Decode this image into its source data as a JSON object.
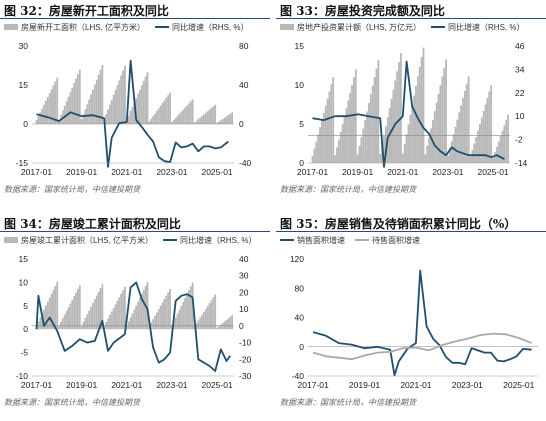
{
  "charts": [
    {
      "id": "c32",
      "title": "图 32：房屋新开工面积及同比",
      "source": "数据来源：国家统计局，中信建投期货",
      "chart_data": {
        "type": "bar+line",
        "legend": {
          "position": "top",
          "entries": [
            "房屋新开工面积（LHS, 亿平方米）",
            "同比增速（RHS, %）"
          ]
        },
        "left_axis": {
          "ticks": [
            -15,
            0,
            15,
            30
          ],
          "ylim": [
            -15,
            30
          ]
        },
        "right_axis": {
          "ticks": [
            -40,
            0,
            40,
            80
          ],
          "ylim": [
            -40,
            80
          ]
        },
        "xticks": [
          "2017-01",
          "2019-01",
          "2021-01",
          "2023-01",
          "2025-01"
        ],
        "series": [
          {
            "name": "房屋新开工面积（LHS, 亿平方米）",
            "axis": "left",
            "kind": "bar",
            "color": "#b8b8b8",
            "x": [
              "2017-01",
              "2018-01",
              "2019-01",
              "2020-01",
              "2021-01",
              "2022-01",
              "2023-01",
              "2024-01",
              "2025-01"
            ],
            "annual_totals": [
              17.8,
              20.9,
              22.7,
              22.4,
              19.9,
              12.1,
              9.5,
              7.4,
              5.9
            ],
            "note": "cumulative year-to-date"
          },
          {
            "name": "同比增速（RHS, %）",
            "axis": "right",
            "kind": "line",
            "color": "#1f4e6e",
            "x": [
              "2017-01",
              "2017-07",
              "2018-01",
              "2018-07",
              "2019-01",
              "2019-07",
              "2020-01",
              "2020-03",
              "2020-05",
              "2020-09",
              "2021-01",
              "2021-03",
              "2021-06",
              "2021-09",
              "2021-12",
              "2022-03",
              "2022-06",
              "2022-09",
              "2022-12",
              "2023-03",
              "2023-06",
              "2023-09",
              "2023-12",
              "2024-03",
              "2024-06",
              "2024-09",
              "2024-12",
              "2025-03",
              "2025-07"
            ],
            "values": [
              10,
              7,
              3,
              12,
              8,
              9,
              6,
              -44,
              -14,
              1,
              2,
              65,
              4,
              -3,
              -11,
              -18,
              -34,
              -38,
              -39,
              -19,
              -24,
              -23,
              -20,
              -28,
              -23,
              -23,
              -25,
              -24,
              -18
            ]
          }
        ]
      }
    },
    {
      "id": "c33",
      "title": "图 33：房屋投资完成额及同比",
      "source": "数据来源：国家统计局，中信建投期货",
      "chart_data": {
        "type": "bar+line",
        "legend": {
          "position": "top",
          "entries": [
            "房地产投资累计额（LHS, 万亿元）",
            "同比增速（RHS, %）"
          ]
        },
        "left_axis": {
          "ticks": [
            0,
            5,
            10,
            15
          ],
          "ylim": [
            0,
            15
          ]
        },
        "right_axis": {
          "ticks": [
            -14,
            -2,
            10,
            22,
            34,
            46
          ],
          "ylim": [
            -14,
            46
          ]
        },
        "xticks": [
          "2017-01",
          "2019-01",
          "2021-01",
          "2023-01",
          "2025-01"
        ],
        "series": [
          {
            "name": "房地产投资累计额（LHS, 万亿元）",
            "axis": "left",
            "kind": "bar",
            "color": "#b8b8b8",
            "x": [
              "2017-01",
              "2018-01",
              "2019-01",
              "2020-01",
              "2021-01",
              "2022-01",
              "2023-01",
              "2024-01",
              "2025-01"
            ],
            "annual_totals": [
              11.0,
              12.0,
              13.2,
              14.1,
              14.8,
              13.3,
              11.1,
              10.0,
              8.3
            ],
            "note": "cumulative year-to-date"
          },
          {
            "name": "同比增速（RHS, %）",
            "axis": "right",
            "kind": "line",
            "color": "#1f4e6e",
            "x": [
              "2017-01",
              "2017-07",
              "2018-01",
              "2018-07",
              "2019-01",
              "2019-07",
              "2020-01",
              "2020-03",
              "2020-05",
              "2020-09",
              "2021-01",
              "2021-03",
              "2021-06",
              "2021-09",
              "2021-12",
              "2022-03",
              "2022-06",
              "2022-09",
              "2022-12",
              "2023-03",
              "2023-06",
              "2023-09",
              "2023-12",
              "2024-03",
              "2024-06",
              "2024-09",
              "2024-12",
              "2025-03",
              "2025-07"
            ],
            "values": [
              9,
              8,
              10,
              10,
              11,
              10,
              9,
              -16,
              -1,
              6,
              10,
              38,
              15,
              9,
              4,
              1,
              -5,
              -8,
              -10,
              -6,
              -8,
              -9,
              -10,
              -10,
              -10,
              -10,
              -11,
              -10,
              -12
            ]
          }
        ]
      }
    },
    {
      "id": "c34",
      "title": "图 34：房屋竣工累计面积及同比",
      "source": "数据来源：国家统计局，中信建投期货",
      "chart_data": {
        "type": "bar+line",
        "legend": {
          "position": "top",
          "entries": [
            "房屋竣工累计面积（LHS, 亿平方米）",
            "同比增速（RHS, %）"
          ]
        },
        "left_axis": {
          "ticks": [
            -10,
            -5,
            0,
            5,
            10,
            15
          ],
          "ylim": [
            -10,
            15
          ]
        },
        "right_axis": {
          "ticks": [
            -30,
            -20,
            -10,
            0,
            10,
            20,
            30,
            40
          ],
          "ylim": [
            -30,
            40
          ]
        },
        "xticks": [
          "2017-01",
          "2019-01",
          "2021-01",
          "2023-01",
          "2025-01"
        ],
        "series": [
          {
            "name": "房屋竣工累计面积（LHS, 亿平方米）",
            "axis": "left",
            "kind": "bar",
            "color": "#b8b8b8",
            "x": [
              "2017-01",
              "2018-01",
              "2019-01",
              "2020-01",
              "2021-01",
              "2022-01",
              "2023-01",
              "2024-01",
              "2025-01"
            ],
            "annual_totals": [
              10.1,
              9.4,
              9.6,
              9.1,
              10.1,
              8.6,
              10.0,
              7.4,
              4.0
            ],
            "note": "cumulative year-to-date"
          },
          {
            "name": "同比增速（RHS, %）",
            "axis": "right",
            "kind": "line",
            "color": "#1f4e6e",
            "x": [
              "2017-01",
              "2017-02",
              "2017-05",
              "2017-08",
              "2017-12",
              "2018-04",
              "2018-08",
              "2018-12",
              "2019-04",
              "2019-08",
              "2019-12",
              "2020-03",
              "2020-06",
              "2020-12",
              "2021-03",
              "2021-06",
              "2021-09",
              "2021-12",
              "2022-03",
              "2022-06",
              "2022-09",
              "2022-12",
              "2023-03",
              "2023-06",
              "2023-09",
              "2023-12",
              "2024-03",
              "2024-06",
              "2024-09",
              "2024-12",
              "2025-03",
              "2025-06",
              "2025-08"
            ],
            "values": [
              -2,
              18,
              0,
              5,
              -3,
              -15,
              -12,
              -8,
              -10,
              -9,
              3,
              -15,
              -10,
              -5,
              23,
              26,
              16,
              10,
              -13,
              -22,
              -20,
              -16,
              15,
              18,
              19,
              17,
              -20,
              -22,
              -24,
              -27,
              -14,
              -21,
              -18
            ]
          }
        ]
      }
    },
    {
      "id": "c35",
      "title": "图 35：房屋销售及待销面积累计同比（%）",
      "source": "数据来源：国家统计局，中信建投期货",
      "chart_data": {
        "type": "line",
        "legend": {
          "position": "top",
          "entries": [
            "销售面积增速",
            "待售面积增速"
          ]
        },
        "left_axis": {
          "ticks": [
            -40,
            0,
            40,
            80,
            120
          ],
          "ylim": [
            -40,
            120
          ]
        },
        "xticks": [
          "2017-01",
          "2019-01",
          "2021-01",
          "2023-01",
          "2025-01"
        ],
        "series": [
          {
            "name": "销售面积增速",
            "kind": "line",
            "color": "#1f4e6e",
            "x": [
              "2017-01",
              "2017-07",
              "2018-01",
              "2018-07",
              "2019-01",
              "2019-07",
              "2020-01",
              "2020-03",
              "2020-05",
              "2020-09",
              "2021-01",
              "2021-03",
              "2021-06",
              "2021-09",
              "2021-12",
              "2022-03",
              "2022-06",
              "2022-09",
              "2022-12",
              "2023-03",
              "2023-06",
              "2023-09",
              "2023-12",
              "2024-03",
              "2024-06",
              "2024-09",
              "2024-12",
              "2025-03",
              "2025-07"
            ],
            "values": [
              20,
              15,
              5,
              3,
              -2,
              0,
              -4,
              -39,
              -20,
              -3,
              5,
              104,
              28,
              11,
              2,
              -14,
              -22,
              -22,
              -24,
              -2,
              -5,
              -8,
              -8,
              -19,
              -20,
              -17,
              -13,
              -3,
              -4
            ]
          },
          {
            "name": "待售面积增速",
            "kind": "line",
            "color": "#a9a9a9",
            "x": [
              "2017-01",
              "2017-07",
              "2018-01",
              "2018-07",
              "2019-01",
              "2019-07",
              "2020-01",
              "2020-07",
              "2021-01",
              "2021-07",
              "2022-01",
              "2022-07",
              "2023-01",
              "2023-07",
              "2024-01",
              "2024-07",
              "2025-01",
              "2025-07"
            ],
            "values": [
              -8,
              -13,
              -15,
              -17,
              -12,
              -8,
              -7,
              -2,
              -1,
              -5,
              2,
              7,
              11,
              16,
              18,
              17,
              12,
              5
            ]
          }
        ]
      }
    }
  ]
}
